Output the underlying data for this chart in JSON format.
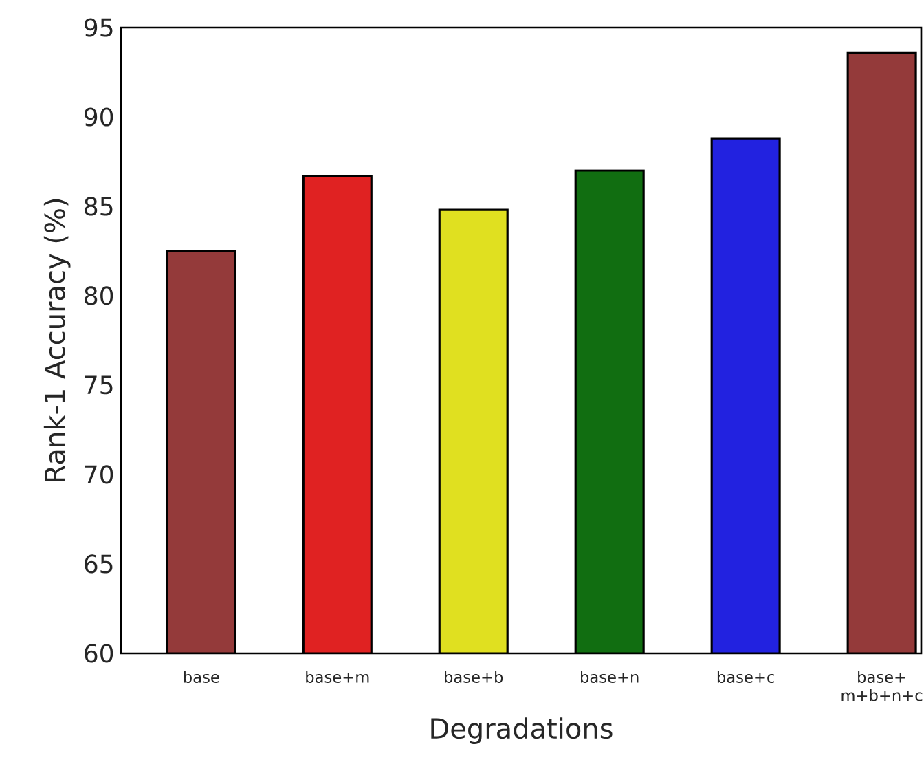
{
  "chart_data": {
    "type": "bar",
    "xlabel": "Degradations",
    "ylabel": "Rank-1 Accuracy (%)",
    "categories": [
      "base",
      "base+m",
      "base+b",
      "base+n",
      "base+c",
      "base+ m+b+n+c"
    ],
    "values": [
      82.5,
      86.7,
      84.8,
      87.0,
      88.8,
      93.6
    ],
    "colors": [
      "#943a3a",
      "#e02222",
      "#e0e020",
      "#116e11",
      "#2222e0",
      "#943a3a"
    ],
    "ylim": [
      60,
      95
    ],
    "yticks": [
      60,
      65,
      70,
      75,
      80,
      85,
      90,
      95
    ]
  }
}
